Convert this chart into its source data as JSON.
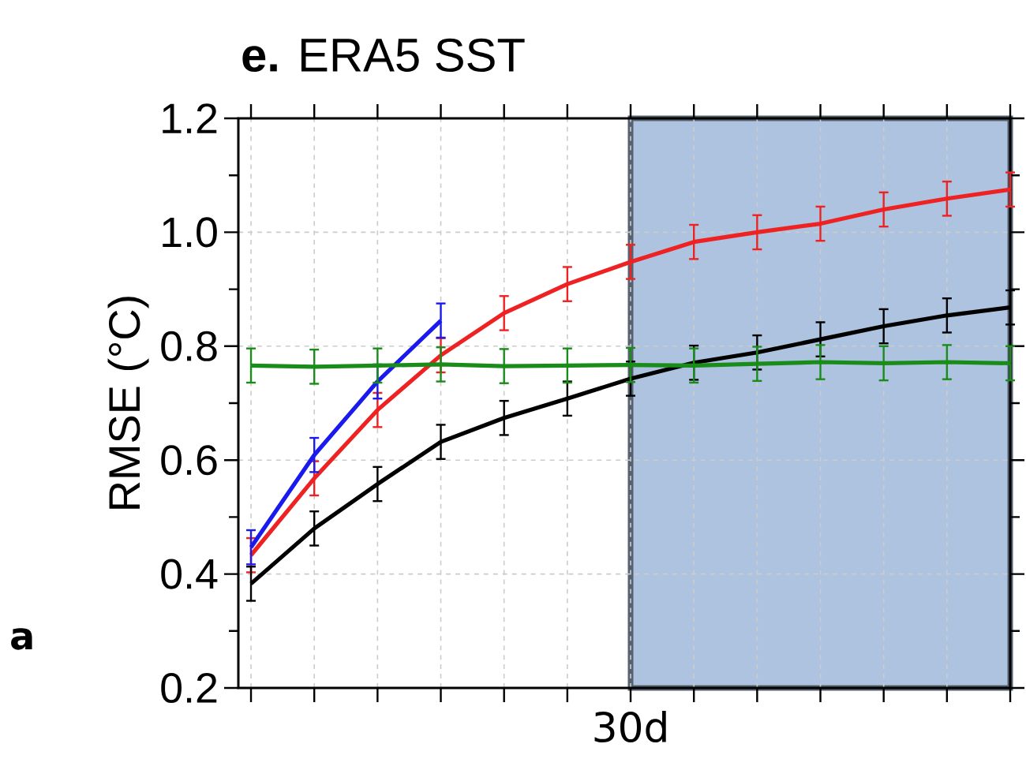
{
  "chart_data": {
    "type": "line",
    "title": "**e.** ERA5 SST",
    "ylabel": "RMSE (°C)",
    "categories": [
      null,
      null,
      null,
      null,
      null,
      null,
      "30d",
      null,
      null,
      null,
      null,
      null,
      null
    ],
    "series": [
      {
        "color": "#ee2222",
        "values": [
          0.433,
          0.568,
          0.688,
          0.784,
          0.858,
          0.909,
          0.948,
          0.983,
          1.0,
          1.015,
          1.04,
          1.059,
          1.075
        ],
        "errors": [
          0.03,
          0.03,
          0.03,
          0.03,
          0.03,
          0.03,
          0.03,
          0.03,
          0.03,
          0.03,
          0.03,
          0.03,
          0.03
        ]
      },
      {
        "color": "#1a1aee",
        "values": [
          0.447,
          0.609,
          0.738,
          0.845,
          null,
          null,
          null,
          null,
          null,
          null,
          null,
          null,
          null
        ],
        "errors": [
          0.03,
          0.03,
          0.03,
          0.03,
          null,
          null,
          null,
          null,
          null,
          null,
          null,
          null,
          null
        ]
      },
      {
        "color": "#000000",
        "values": [
          0.383,
          0.48,
          0.558,
          0.632,
          0.674,
          0.708,
          0.743,
          0.771,
          0.789,
          0.812,
          0.835,
          0.854,
          0.868
        ],
        "errors": [
          0.03,
          0.03,
          0.03,
          0.03,
          0.03,
          0.03,
          0.03,
          0.03,
          0.03,
          0.03,
          0.03,
          0.03,
          0.03
        ]
      },
      {
        "color": "#1a8c1a",
        "values": [
          0.766,
          0.764,
          0.766,
          0.768,
          0.765,
          0.766,
          0.767,
          0.766,
          0.769,
          0.772,
          0.77,
          0.772,
          0.77
        ],
        "errors": [
          0.03,
          0.03,
          0.03,
          0.03,
          0.03,
          0.03,
          0.03,
          0.03,
          0.03,
          0.03,
          0.03,
          0.03,
          0.03
        ]
      }
    ],
    "ylim": [
      0.2,
      1.2
    ],
    "yticks": [
      {
        "value": 0.2,
        "label": "0.2"
      },
      {
        "value": 0.4,
        "label": "0.4"
      },
      {
        "value": 0.6,
        "label": "0.6"
      },
      {
        "value": 0.8,
        "label": "0.8"
      },
      {
        "value": 1.0,
        "label": "1.0"
      },
      {
        "value": 1.2,
        "label": "1.2"
      }
    ],
    "grid": true,
    "annotations": [
      "a"
    ]
  }
}
